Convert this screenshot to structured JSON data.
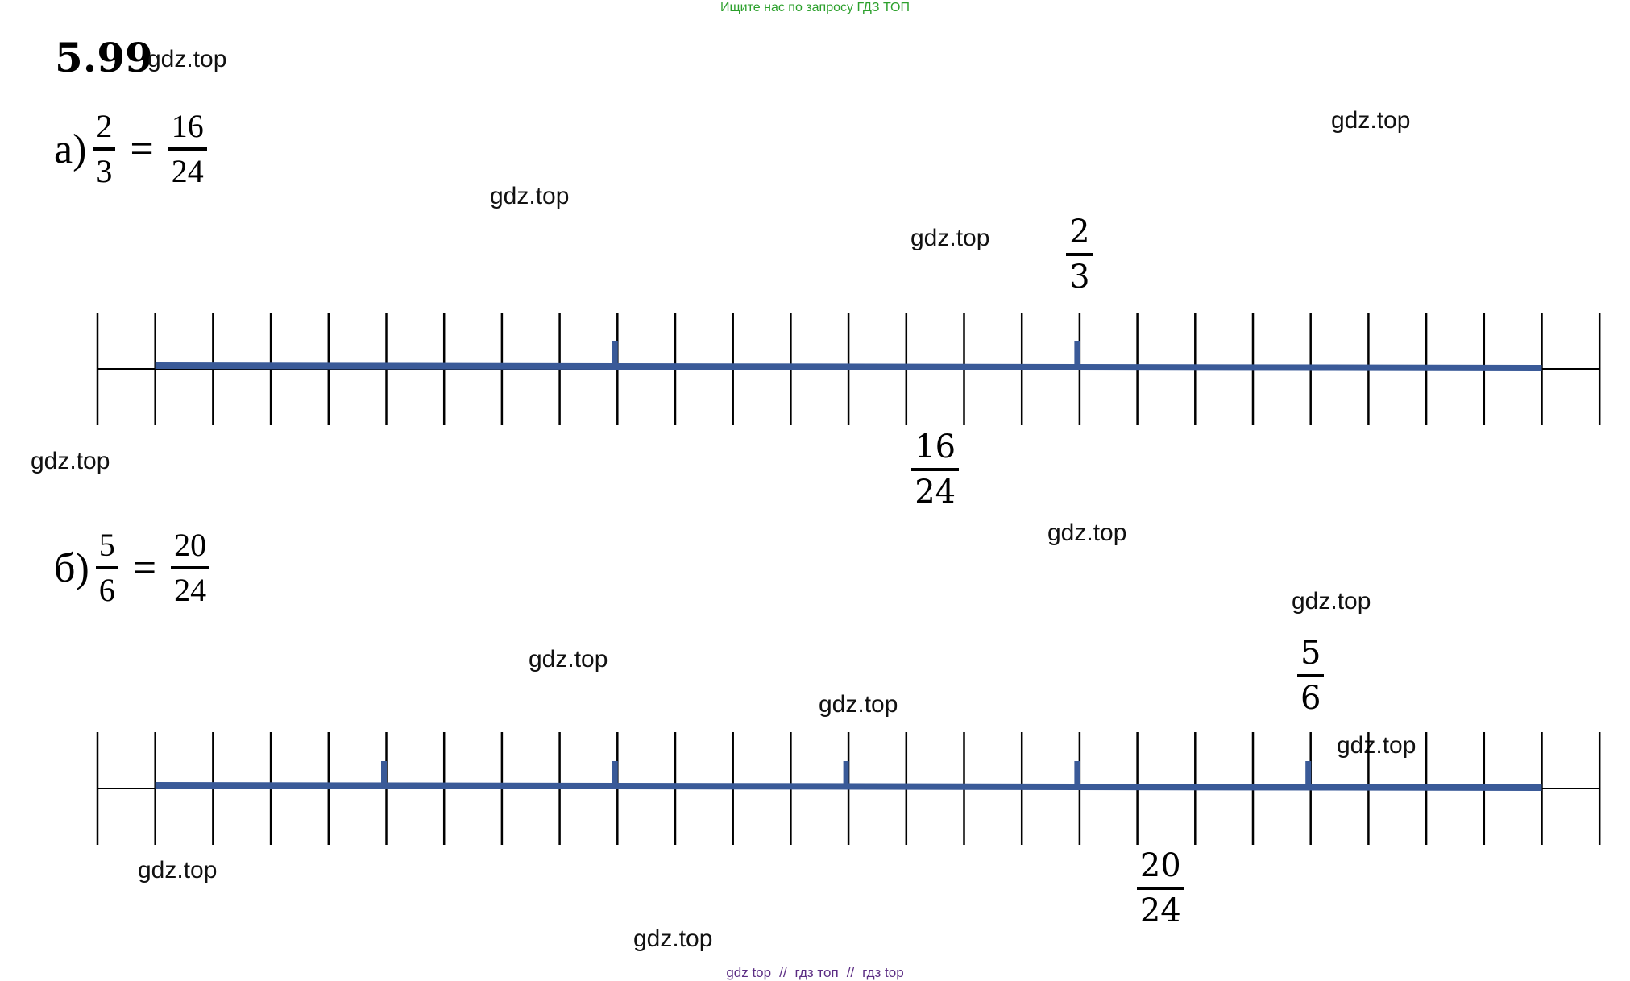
{
  "header": {
    "banner": "Ищите нас по запросу ГДЗ ТОП",
    "task_number": "5.99"
  },
  "watermark": "gdz.top",
  "part_a": {
    "label": "а)",
    "left": {
      "num": "2",
      "den": "3"
    },
    "sign": "=",
    "right": {
      "num": "16",
      "den": "24"
    },
    "number_line": {
      "divisions": 26,
      "start_tick": 1,
      "end_tick": 25,
      "marked_ticks": [
        9,
        17
      ],
      "label_above": {
        "num": "2",
        "den": "3",
        "tick": 17
      },
      "label_below": {
        "num": "16",
        "den": "24",
        "tick": 14.5
      }
    }
  },
  "part_b": {
    "label": "б)",
    "left": {
      "num": "5",
      "den": "6"
    },
    "sign": "=",
    "right": {
      "num": "20",
      "den": "24"
    },
    "number_line": {
      "divisions": 26,
      "start_tick": 1,
      "end_tick": 25,
      "marked_ticks": [
        5,
        9,
        13,
        17,
        21
      ],
      "label_above": {
        "num": "5",
        "den": "6",
        "tick": 21
      },
      "label_below": {
        "num": "20",
        "den": "24",
        "tick": 18.4
      }
    }
  },
  "footer": {
    "links": [
      "gdz top",
      "гдз топ",
      "гдз top"
    ],
    "separator": "//"
  },
  "colors": {
    "banner": "#2ca02c",
    "segment": "#3a5a98",
    "axis": "#000000",
    "footer": "#5b2c83"
  }
}
